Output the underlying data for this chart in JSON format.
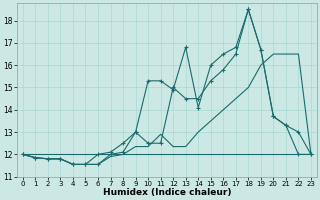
{
  "xlabel": "Humidex (Indice chaleur)",
  "bg_color": "#cce8e5",
  "line_color": "#1a6b6b",
  "grid_color": "#aad8d3",
  "xlim": [
    -0.5,
    23.5
  ],
  "ylim": [
    11.0,
    18.8
  ],
  "yticks": [
    11,
    12,
    13,
    14,
    15,
    16,
    17,
    18
  ],
  "xticks": [
    0,
    1,
    2,
    3,
    4,
    5,
    6,
    7,
    8,
    9,
    10,
    11,
    12,
    13,
    14,
    15,
    16,
    17,
    18,
    19,
    20,
    21,
    22,
    23
  ],
  "flat_x": [
    0,
    1,
    2,
    3,
    4,
    5,
    6,
    7,
    8,
    9,
    10,
    11,
    12,
    13,
    14,
    15,
    16,
    17,
    18,
    19,
    20,
    21,
    22,
    23
  ],
  "flat_y": [
    12,
    12,
    12,
    12,
    12,
    12,
    12,
    12,
    12,
    12,
    12,
    12,
    12,
    12,
    12,
    12,
    12,
    12,
    12,
    12,
    12,
    12,
    12,
    12
  ],
  "smooth_x": [
    0,
    1,
    2,
    3,
    4,
    5,
    6,
    7,
    8,
    9,
    10,
    11,
    12,
    13,
    14,
    15,
    16,
    17,
    18,
    19,
    20,
    21,
    22,
    23
  ],
  "smooth_y": [
    12,
    11.85,
    11.8,
    11.8,
    11.55,
    11.55,
    11.55,
    11.9,
    12.0,
    12.35,
    12.35,
    12.9,
    12.35,
    12.35,
    13.0,
    13.5,
    14.0,
    14.5,
    15.0,
    16.0,
    16.5,
    16.5,
    16.5,
    12
  ],
  "zigzag_x": [
    0,
    1,
    2,
    3,
    4,
    5,
    6,
    7,
    8,
    9,
    10,
    11,
    12,
    13,
    14,
    15,
    16,
    17,
    18,
    19,
    20,
    21,
    22,
    23
  ],
  "zigzag_y": [
    12,
    11.85,
    11.8,
    11.8,
    11.55,
    11.55,
    11.55,
    12.0,
    12.1,
    13.0,
    15.3,
    15.3,
    14.9,
    16.8,
    14.1,
    16.0,
    16.5,
    16.8,
    18.5,
    16.7,
    13.7,
    13.3,
    13.0,
    12
  ],
  "diag_x": [
    0,
    1,
    2,
    3,
    4,
    5,
    6,
    7,
    8,
    9,
    10,
    11,
    12,
    13,
    14,
    15,
    16,
    17,
    18,
    19,
    20,
    21,
    22,
    23
  ],
  "diag_y": [
    12,
    11.85,
    11.8,
    11.8,
    11.55,
    11.55,
    12.0,
    12.1,
    12.5,
    13.0,
    12.5,
    12.5,
    15.0,
    14.5,
    14.5,
    15.3,
    15.8,
    16.5,
    18.5,
    16.7,
    13.7,
    13.3,
    12,
    12
  ]
}
